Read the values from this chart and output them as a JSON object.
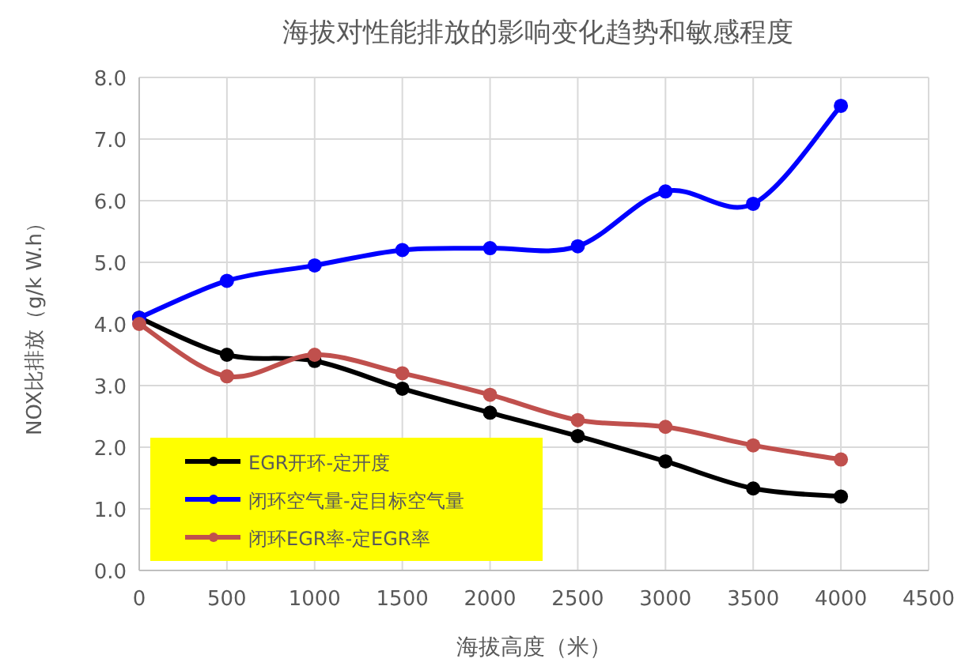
{
  "chart_data": {
    "type": "line",
    "title": "海拔对性能排放的影响变化趋势和敏感程度",
    "xlabel": "海拔高度（米）",
    "ylabel": "NOX比排放（g/k W.h）",
    "x": [
      0,
      500,
      1000,
      1500,
      2000,
      2500,
      3000,
      3500,
      4000
    ],
    "series": [
      {
        "name": "EGR开环-定开度",
        "color": "#000000",
        "values": [
          4.1,
          3.5,
          3.4,
          2.95,
          2.56,
          2.18,
          1.77,
          1.33,
          1.2
        ]
      },
      {
        "name": "闭环空气量-定目标空气量",
        "color": "#0000ff",
        "values": [
          4.1,
          4.7,
          4.95,
          5.2,
          5.23,
          5.26,
          6.15,
          5.95,
          7.54
        ]
      },
      {
        "name": "闭环EGR率-定EGR率",
        "color": "#c0504d",
        "values": [
          4.0,
          3.15,
          3.5,
          3.2,
          2.85,
          2.44,
          2.33,
          2.03,
          1.8
        ]
      }
    ],
    "xlim": [
      0,
      4500
    ],
    "xticks": [
      0,
      500,
      1000,
      1500,
      2000,
      2500,
      3000,
      3500,
      4000,
      4500
    ],
    "ylim": [
      0,
      8
    ],
    "yticks": [
      {
        "value": 0,
        "label": "0.0"
      },
      {
        "value": 1,
        "label": "1.0"
      },
      {
        "value": 2,
        "label": "2.0"
      },
      {
        "value": 3,
        "label": "3.0"
      },
      {
        "value": 4,
        "label": "4.0"
      },
      {
        "value": 5,
        "label": "5.0"
      },
      {
        "value": 6,
        "label": "6.0"
      },
      {
        "value": 7,
        "label": "7.0"
      },
      {
        "value": 8,
        "label": "8.0"
      }
    ],
    "grid": true,
    "legend": "bottom left",
    "marker": "circle",
    "line_style": "solid"
  }
}
